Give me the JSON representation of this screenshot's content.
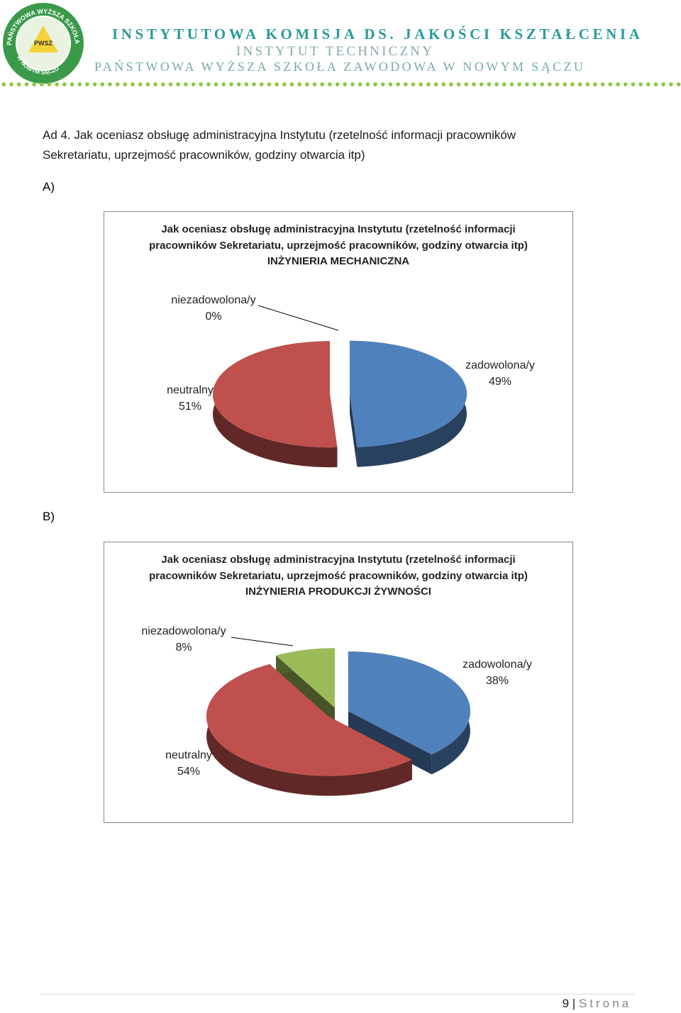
{
  "header": {
    "line1": "INSTYTUTOWA KOMISJA DS. JAKOŚCI KSZTAŁCENIA",
    "line2": "INSTYTUT TECHNICZNY",
    "line3": "PAŃSTWOWA WYŻSZA SZKOŁA ZAWODOWA W NOWYM SĄCZU",
    "logo_ring": "PAŃSTWOWA WYŻSZA SZKOŁA ZAWODOWA",
    "logo_bottom": "W NOWYM SĄCZU",
    "logo_center": "PWSZ"
  },
  "question": "Ad 4. Jak oceniasz obsługę administracyjna Instytutu (rzetelność informacji pracowników Sekretariatu, uprzejmość pracowników, godziny otwarcia itp)",
  "sections": [
    "A)",
    "B)"
  ],
  "chart_data": [
    {
      "type": "pie",
      "title": "Jak oceniasz obsługę administracyjna Instytutu (rzetelność informacji pracowników Sekretariatu, uprzejmość pracowników, godziny otwarcia itp)",
      "subtitle": "INŻYNIERIA MECHANICZNA",
      "categories": [
        "zadowolona/y",
        "neutralny",
        "niezadowolona/y"
      ],
      "values": [
        49,
        51,
        0
      ],
      "value_labels": [
        "49%",
        "51%",
        "0%"
      ],
      "colors": [
        "#4f81bd",
        "#c0504d",
        "#9bbb59"
      ]
    },
    {
      "type": "pie",
      "title": "Jak oceniasz obsługę administracyjna Instytutu (rzetelność informacji pracowników Sekretariatu, uprzejmość pracowników, godziny otwarcia itp)",
      "subtitle": "INŻYNIERIA PRODUKCJI ŻYWNOŚCI",
      "categories": [
        "zadowolona/y",
        "neutralny",
        "niezadowolona/y"
      ],
      "values": [
        38,
        54,
        8
      ],
      "value_labels": [
        "38%",
        "54%",
        "8%"
      ],
      "colors": [
        "#4f81bd",
        "#c0504d",
        "#9bbb59"
      ]
    }
  ],
  "footer": {
    "page": "9",
    "label": "Strona"
  }
}
